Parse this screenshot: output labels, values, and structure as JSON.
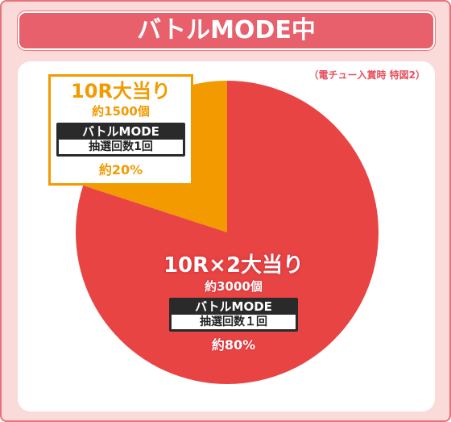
{
  "title": "バトルMODE中",
  "note": "（電チュー入賞時 特図2）",
  "colors": {
    "large_slice": "#e84444",
    "small_slice": "#f29a00",
    "frame": "#e8727a"
  },
  "chart_data": {
    "type": "pie",
    "slices": [
      {
        "prize": "10R大当り",
        "count": "約1500個",
        "mode": "バトルMODE",
        "lottery": "抽選回数1回",
        "percent_label": "約20%",
        "value": 20,
        "color": "#f29a00"
      },
      {
        "prize": "10R×2大当り",
        "count": "約3000個",
        "mode": "バトルMODE",
        "lottery": "抽選回数１回",
        "percent_label": "約80%",
        "value": 80,
        "color": "#e84444"
      }
    ]
  }
}
